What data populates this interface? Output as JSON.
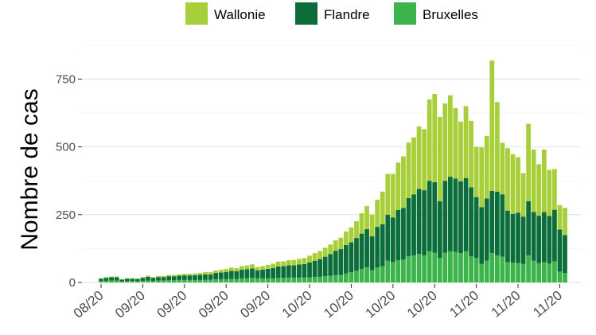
{
  "chart_data": {
    "type": "bar",
    "stacked": true,
    "ylabel": "Nombre de cas",
    "xlabel": "",
    "ylim": [
      0,
      880
    ],
    "yticks": [
      0,
      250,
      500,
      750
    ],
    "ytick_labels": [
      "0",
      "250",
      "500",
      "750"
    ],
    "xtick_labels": [
      "08/20",
      "09/20",
      "09/20",
      "09/20",
      "09/20",
      "10/20",
      "10/20",
      "10/20",
      "10/20",
      "11/20",
      "11/20",
      "11/20"
    ],
    "xtick_bar_index": [
      0,
      8,
      16,
      24,
      32,
      40,
      48,
      56,
      64,
      72,
      80,
      88
    ],
    "grid": true,
    "legend_position": "top",
    "series": [
      {
        "name": "Bruxelles",
        "color": "#3cb44b",
        "values": [
          5,
          6,
          7,
          7,
          4,
          5,
          5,
          5,
          6,
          7,
          6,
          7,
          7,
          8,
          8,
          9,
          9,
          9,
          9,
          9,
          10,
          10,
          12,
          12,
          12,
          13,
          13,
          15,
          16,
          17,
          15,
          15,
          15,
          15,
          17,
          17,
          18,
          18,
          18,
          18,
          19,
          20,
          21,
          23,
          25,
          27,
          28,
          33,
          38,
          44,
          50,
          57,
          45,
          55,
          60,
          80,
          75,
          82,
          85,
          96,
          100,
          105,
          100,
          115,
          110,
          90,
          110,
          115,
          113,
          108,
          115,
          96,
          90,
          68,
          80,
          108,
          100,
          95,
          75,
          73,
          72,
          68,
          100,
          80,
          71,
          75,
          70,
          78,
          40,
          35
        ]
      },
      {
        "name": "Flandre",
        "color": "#0b6e3a",
        "values": [
          9,
          11,
          12,
          12,
          7,
          9,
          9,
          8,
          11,
          14,
          11,
          13,
          13,
          15,
          15,
          16,
          17,
          17,
          18,
          19,
          20,
          20,
          23,
          25,
          27,
          30,
          29,
          32,
          33,
          35,
          30,
          32,
          35,
          38,
          42,
          43,
          45,
          45,
          48,
          50,
          55,
          60,
          65,
          72,
          80,
          90,
          95,
          105,
          110,
          120,
          130,
          140,
          125,
          150,
          155,
          170,
          165,
          185,
          190,
          215,
          225,
          240,
          240,
          260,
          260,
          210,
          265,
          275,
          270,
          265,
          270,
          255,
          225,
          210,
          230,
          230,
          235,
          230,
          190,
          180,
          185,
          175,
          200,
          180,
          175,
          185,
          175,
          190,
          155,
          140
        ]
      },
      {
        "name": "Wallonie",
        "color": "#a6cf3a",
        "values": [
          2,
          3,
          3,
          3,
          1,
          2,
          2,
          1,
          3,
          4,
          3,
          4,
          4,
          5,
          5,
          5,
          6,
          6,
          6,
          7,
          8,
          8,
          9,
          10,
          11,
          12,
          11,
          13,
          14,
          15,
          12,
          13,
          15,
          16,
          18,
          18,
          19,
          20,
          21,
          22,
          25,
          28,
          30,
          33,
          35,
          38,
          42,
          50,
          55,
          62,
          75,
          85,
          80,
          100,
          120,
          150,
          160,
          175,
          190,
          205,
          210,
          230,
          225,
          300,
          325,
          310,
          285,
          300,
          260,
          220,
          265,
          245,
          185,
          220,
          230,
          480,
          330,
          190,
          230,
          220,
          205,
          160,
          285,
          230,
          190,
          230,
          170,
          150,
          90,
          100
        ]
      }
    ]
  }
}
